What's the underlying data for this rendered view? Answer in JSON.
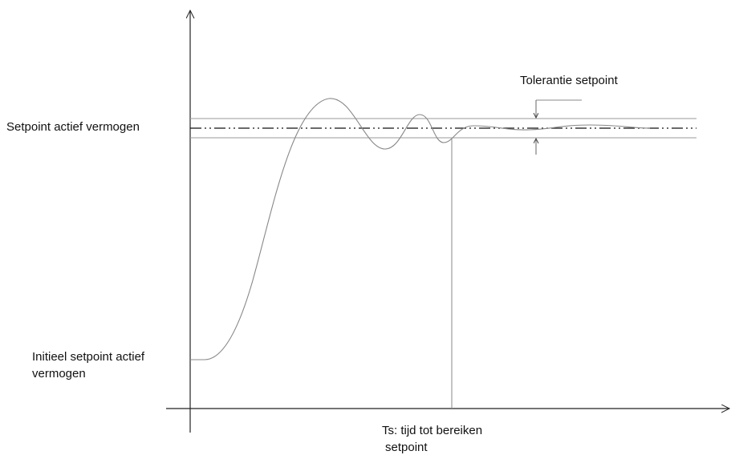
{
  "labels": {
    "setpoint": "Setpoint actief vermogen",
    "initial": [
      "Initieel setpoint actief",
      "vermogen"
    ],
    "tolerance": "Tolerantie setpoint",
    "settling_time": [
      "Ts: tijd tot bereiken",
      "setpoint"
    ]
  }
}
